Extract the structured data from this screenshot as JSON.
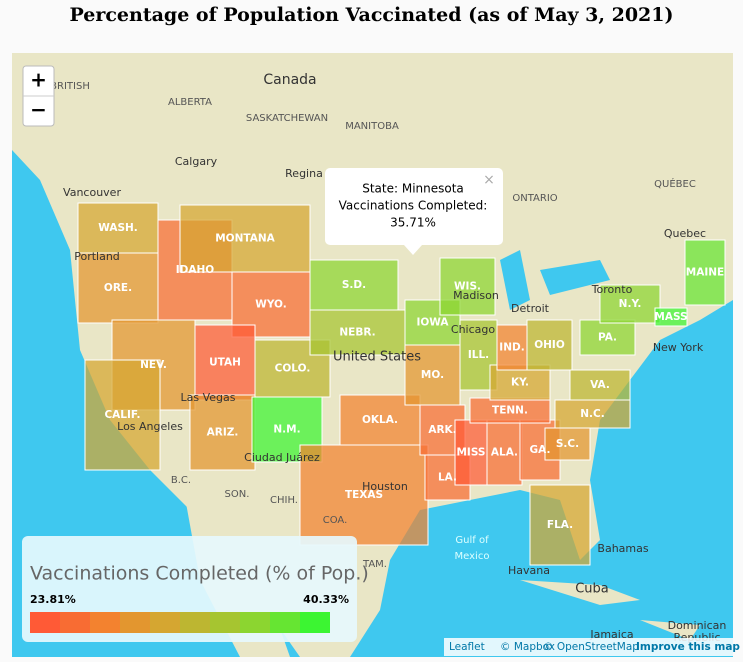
{
  "title": "Percentage of Population Vaccinated (as of May 3, 2021)",
  "zoom": {
    "in": "+",
    "out": "−"
  },
  "tooltip": {
    "close": "×",
    "lines": [
      "State: Minnesota",
      "Vaccinations Completed:",
      "35.71%"
    ]
  },
  "legend": {
    "title": "Vaccinations Completed (% of Pop.)",
    "min": {
      "value": 23.81,
      "label": "23.81%"
    },
    "max": {
      "value": 40.33,
      "label": "40.33%"
    },
    "colors": [
      "#ff5a36",
      "#f86c33",
      "#f3822f",
      "#e3962f",
      "#d5a631",
      "#bdb631",
      "#a6c530",
      "#8cd530",
      "#66e532",
      "#3cf532"
    ]
  },
  "states": [
    {
      "label": "WASH.",
      "value": 32
    },
    {
      "label": "ORE.",
      "value": 30
    },
    {
      "label": "IDAHO",
      "value": 27
    },
    {
      "label": "MONTANA",
      "value": 31
    },
    {
      "label": "WYO.",
      "value": 26
    },
    {
      "label": "NEV.",
      "value": 29
    },
    {
      "label": "CALIF.",
      "value": 31
    },
    {
      "label": "UTAH",
      "value": 25
    },
    {
      "label": "COLO.",
      "value": 33
    },
    {
      "label": "ARIZ.",
      "value": 29
    },
    {
      "label": "N.M.",
      "value": 39
    },
    {
      "label": "S.D.",
      "value": 36
    },
    {
      "label": "NEBR.",
      "value": 35
    },
    {
      "label": "OKLA.",
      "value": 28
    },
    {
      "label": "TEXAS",
      "value": 28
    },
    {
      "label": "IOWA",
      "value": 37
    },
    {
      "label": "WIS.",
      "value": 37
    },
    {
      "label": "ILL.",
      "value": 34
    },
    {
      "label": "MO.",
      "value": 30
    },
    {
      "label": "ARK.",
      "value": 27
    },
    {
      "label": "LA.",
      "value": 27
    },
    {
      "label": "MISS",
      "value": 24
    },
    {
      "label": "ALA.",
      "value": 26
    },
    {
      "label": "GA.",
      "value": 27
    },
    {
      "label": "TENN.",
      "value": 26
    },
    {
      "label": "KY.",
      "value": 31
    },
    {
      "label": "IND.",
      "value": 28
    },
    {
      "label": "OHIO",
      "value": 33
    },
    {
      "label": "N.C.",
      "value": 31
    },
    {
      "label": "S.C.",
      "value": 29
    },
    {
      "label": "FLA.",
      "value": 31
    },
    {
      "label": "VA.",
      "value": 33
    },
    {
      "label": "PA.",
      "value": 37
    },
    {
      "label": "N.Y.",
      "value": 36
    },
    {
      "label": "MASS",
      "value": 40
    },
    {
      "label": "MAINE",
      "value": 38
    }
  ],
  "places": [
    "Canada",
    "ALBERTA",
    "SASKATCHEWAN",
    "MANITOBA",
    "ONTARIO",
    "QUÉBEC",
    "BRITISH",
    "Calgary",
    "Regina",
    "Vancouver",
    "Portland",
    "Las Vegas",
    "Los Angeles",
    "Ciudad Juárez",
    "Houston",
    "Madison",
    "Chicago",
    "Detroit",
    "Toronto",
    "Quebec",
    "New York",
    "United States",
    "B.C.",
    "SON.",
    "CHIH.",
    "COA.",
    "TAM.",
    "Gulf of",
    "Mexico",
    "Bahamas",
    "Havana",
    "Cuba",
    "Dominican",
    "Republic",
    "Jamaica"
  ],
  "attribution": {
    "leaflet": "Leaflet",
    "mapbox": "© Mapbox",
    "osm": "© OpenStreetMap",
    "improve": "Improve this map"
  }
}
